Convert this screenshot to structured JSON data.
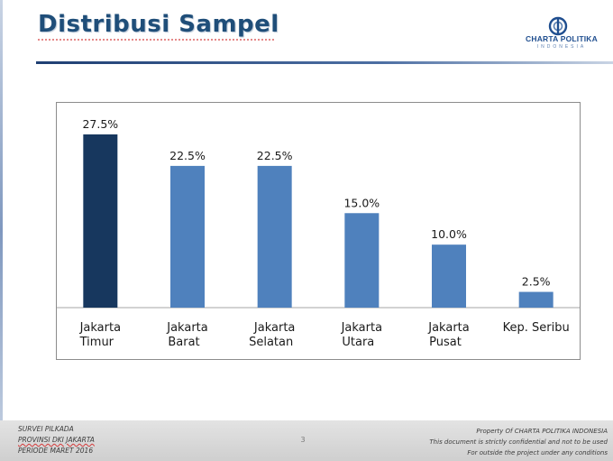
{
  "slide": {
    "title": "Distribusi Sampel",
    "page_number": "3"
  },
  "logo": {
    "name": "CHARTA POLITIKA",
    "subtitle": "INDONESIA",
    "color": "#1f4e8f"
  },
  "footer": {
    "left_lines": [
      "SURVEI PILKADA",
      "PROVINSI DKI JAKARTA",
      "PERIODE  MARET 2016"
    ],
    "right_lines": [
      "Property Of CHARTA POLITIKA INDONESIA",
      "This document is strictly confidential and not to be used",
      "For  outside the project under any conditions"
    ]
  },
  "chart_data": {
    "type": "bar",
    "categories": [
      [
        "Jakarta",
        "Timur"
      ],
      [
        "Jakarta",
        "Barat"
      ],
      [
        "Jakarta",
        "Selatan"
      ],
      [
        "Jakarta",
        "Utara"
      ],
      [
        "Jakarta",
        "Pusat"
      ],
      [
        "Kep. Seribu"
      ]
    ],
    "values": [
      27.5,
      22.5,
      22.5,
      15.0,
      10.0,
      2.5
    ],
    "value_labels": [
      "27.5%",
      "22.5%",
      "22.5%",
      "15.0%",
      "10.0%",
      "2.5%"
    ],
    "ylim": [
      0,
      28.5
    ],
    "grid": false,
    "legend": "none",
    "colors": [
      "#17375e",
      "#4f81bd",
      "#4f81bd",
      "#4f81bd",
      "#4f81bd",
      "#4f81bd"
    ]
  }
}
